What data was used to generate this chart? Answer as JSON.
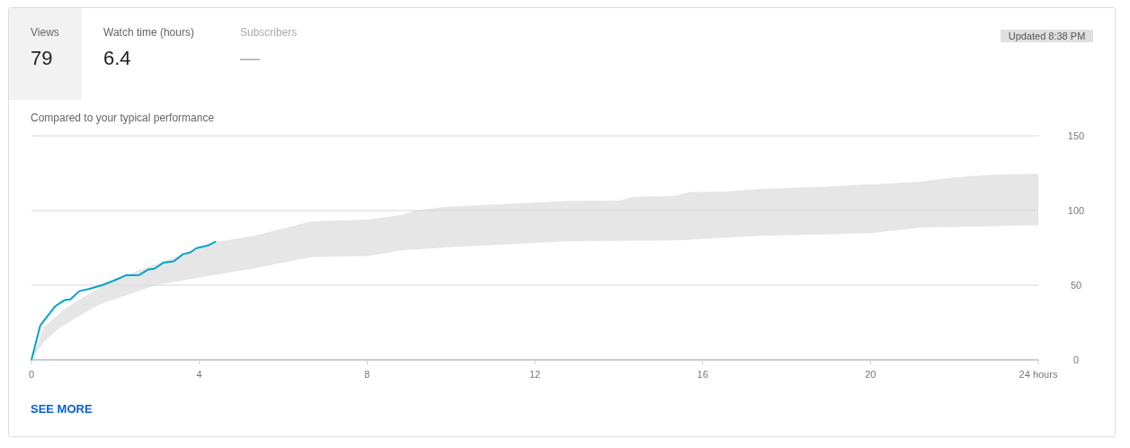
{
  "chart_data": {
    "type": "line",
    "title": "Compared to your typical performance",
    "annotations": [
      "Views",
      "79",
      "Watch time (hours)",
      "6.4",
      "Subscribers",
      "—",
      "Updated 8:38 PM",
      "SEE MORE"
    ],
    "xlim": [
      0,
      24
    ],
    "xticks": [
      0,
      4,
      8,
      12,
      16,
      20,
      {
        "value": 24,
        "label": "24 hours"
      }
    ],
    "ylim": [
      0,
      150
    ],
    "yticks": [
      0,
      50,
      100,
      150
    ],
    "grid": "y",
    "marker": "none",
    "line_style": "solid",
    "series": [
      {
        "type": "area",
        "color": "#e6e6e6",
        "x": [
          0,
          0.3,
          0.7,
          1.0,
          1.54,
          1.82,
          2.96,
          4.18,
          4.39,
          5.25,
          6.68,
          8.04,
          8.82,
          9.17,
          9.89,
          12.75,
          14.03,
          14.39,
          15.32,
          15.68,
          16.5,
          17.32,
          18.96,
          19.75,
          20.04,
          21.18,
          22.1,
          22.9,
          23.25,
          24
        ],
        "values": [
          null,
          null,
          null,
          null,
          null,
          null,
          null,
          null,
          null,
          null,
          null,
          null,
          null,
          null,
          null,
          null,
          null,
          null,
          null,
          null,
          null,
          null,
          null,
          null,
          null,
          null,
          null,
          null,
          null,
          null
        ],
        "lower": [
          0,
          12,
          22,
          27,
          36,
          39,
          50,
          56,
          57,
          61,
          68.8,
          69.6,
          73.3,
          74,
          75.3,
          79.3,
          79.6,
          79.8,
          80,
          80.4,
          81.8,
          83,
          84,
          84.6,
          84.9,
          88.5,
          89,
          89.5,
          89.7,
          90
        ],
        "upper": [
          0,
          22,
          32,
          38,
          47,
          52.2,
          64,
          76,
          79,
          82.7,
          92.8,
          94,
          97,
          100,
          102.6,
          106.4,
          106.8,
          109.4,
          109.6,
          112.4,
          112.6,
          114.5,
          116,
          117.3,
          117.5,
          119.3,
          122.5,
          124,
          124.2,
          124.5
        ]
      },
      {
        "type": "line",
        "color": "#00a3cc",
        "x": [
          0,
          0.21,
          0.32,
          0.57,
          0.79,
          0.93,
          1.14,
          1.39,
          1.68,
          1.96,
          2.25,
          2.57,
          2.79,
          2.93,
          3.14,
          3.39,
          3.61,
          3.79,
          3.93,
          4.21,
          4.38
        ],
        "values": [
          0,
          23,
          27,
          36,
          40,
          40.5,
          46,
          47.6,
          50,
          53,
          56.6,
          56.8,
          60.6,
          61,
          65,
          66,
          70.7,
          72,
          74.7,
          76.6,
          79
        ]
      }
    ]
  }
}
